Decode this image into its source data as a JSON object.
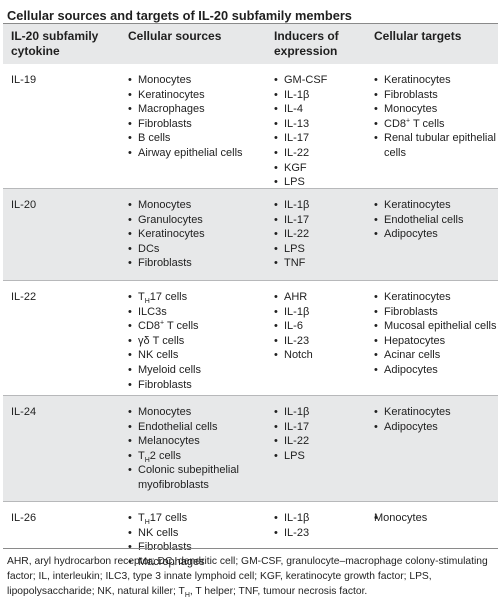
{
  "title": "Cellular sources and targets of IL-20 subfamily members",
  "header": {
    "col1": "IL-20 subfamily cytokine",
    "col2": "Cellular sources",
    "col3": "Inducers of expression",
    "col4": "Cellular targets"
  },
  "rows": [
    {
      "cytokine": "IL-19",
      "sources": [
        "Monocytes",
        "Keratinocytes",
        "Macrophages",
        "Fibroblasts",
        "B cells",
        "Airway epithelial cells"
      ],
      "inducers": [
        "GM-CSF",
        "IL-1β",
        "IL-4",
        "IL-13",
        "IL-17",
        "IL-22",
        "KGF",
        "LPS"
      ],
      "targets": [
        "Keratinocytes",
        "Fibroblasts",
        "Monocytes",
        "CD8⁺ T cells",
        "Renal tubular epithelial cells"
      ]
    },
    {
      "cytokine": "IL-20",
      "sources": [
        "Monocytes",
        "Granulocytes",
        "Keratinocytes",
        "DCs",
        "Fibroblasts"
      ],
      "inducers": [
        "IL-1β",
        "IL-17",
        "IL-22",
        "LPS",
        "TNF"
      ],
      "targets": [
        "Keratinocytes",
        "Endothelial cells",
        "Adipocytes"
      ]
    },
    {
      "cytokine": "IL-22",
      "sources": [
        "T_H17 cells",
        "ILC3s",
        "CD8⁺ T cells",
        "γδ T cells",
        "NK cells",
        "Myeloid cells",
        "Fibroblasts"
      ],
      "inducers": [
        "AHR",
        "IL-1β",
        "IL-6",
        "IL-23",
        "Notch"
      ],
      "targets": [
        "Keratinocytes",
        "Fibroblasts",
        "Mucosal epithelial cells",
        "Hepatocytes",
        "Acinar cells",
        "Adipocytes"
      ]
    },
    {
      "cytokine": "IL-24",
      "sources": [
        "Monocytes",
        "Endothelial cells",
        "Melanocytes",
        "T_H2 cells",
        "Colonic subepithelial myofibroblasts"
      ],
      "inducers": [
        "IL-1β",
        "IL-17",
        "IL-22",
        "LPS"
      ],
      "targets": [
        "Keratinocytes",
        "Adipocytes"
      ]
    },
    {
      "cytokine": "IL-26",
      "sources": [
        "T_H17 cells",
        "NK cells",
        "Fibroblasts",
        "Macrophages"
      ],
      "inducers": [
        "IL-1β",
        "IL-23"
      ],
      "targets": [
        "Monocytes"
      ],
      "targets_plain": true
    }
  ],
  "footnote": "AHR, aryl hydrocarbon receptor; DC, dendritic cell; GM-CSF, granulocyte–macrophage colony-stimulating factor; IL, interleukin; ILC3, type 3 innate lymphoid cell; KGF, keratinocyte growth factor; LPS, lipopolysaccharide; NK, natural killer; T_H, T helper; TNF, tumour necrosis factor."
}
